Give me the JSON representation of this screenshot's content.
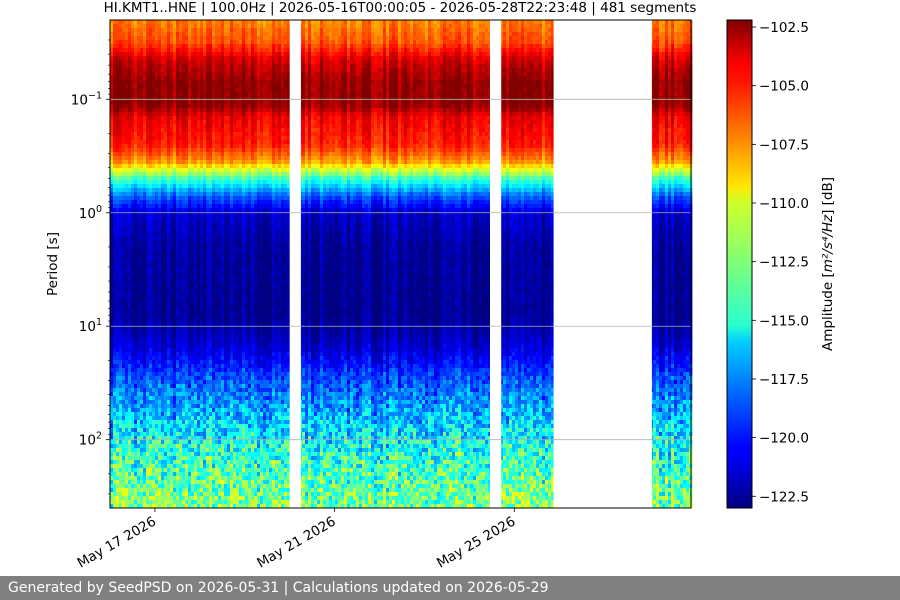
{
  "chart_data": {
    "type": "heatmap",
    "title": "HI.KMT1..HNE | 100.0Hz | 2026-05-16T00:00:05 - 2026-05-28T22:23:48 | 481 segments",
    "ylabel": "Period [s]",
    "y_scale": "log",
    "y_ticks": [
      {
        "value": 0.1,
        "base": "10",
        "exp": "−1"
      },
      {
        "value": 1,
        "base": "10",
        "exp": "0"
      },
      {
        "value": 10,
        "base": "10",
        "exp": "1"
      },
      {
        "value": 100,
        "base": "10",
        "exp": "2"
      }
    ],
    "ylim": [
      0.02,
      400
    ],
    "x_ticks": [
      {
        "date": "2026-05-17",
        "label": "May 17 2026"
      },
      {
        "date": "2026-05-21",
        "label": "May 21 2026"
      },
      {
        "date": "2026-05-25",
        "label": "May 25 2026"
      }
    ],
    "xlim": [
      "2026-05-16T00:00:05",
      "2026-05-28T22:23:48"
    ],
    "gaps": [
      [
        "2026-05-20T00:00:00",
        "2026-05-20T06:00:00"
      ],
      [
        "2026-05-24T11:00:00",
        "2026-05-24T17:00:00"
      ],
      [
        "2026-05-25T21:00:00",
        "2026-05-28T01:30:00"
      ]
    ],
    "colorbar": {
      "label_prefix": "Amplitude [",
      "label_unit": "m²/s⁴/Hz",
      "label_suffix": "] [dB]",
      "min": -123.0,
      "max": -102.2,
      "ticks": [
        "-102.5",
        "-105.0",
        "-107.5",
        "-110.0",
        "-112.5",
        "-115.0",
        "-117.5",
        "-120.0",
        "-122.5"
      ],
      "colormap": "jet"
    },
    "grid": "horizontal"
  },
  "footer": {
    "text": "Generated by SeedPSD on 2026-05-31 | Calculations updated on 2026-05-29"
  }
}
